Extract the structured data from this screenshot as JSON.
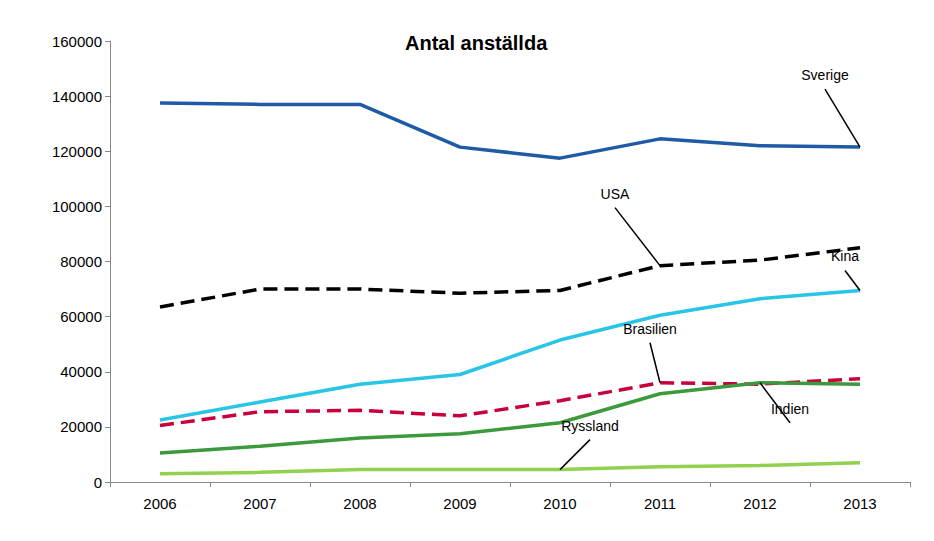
{
  "chart_data": {
    "type": "line",
    "title": "Antal anställda",
    "categories": [
      "2006",
      "2007",
      "2008",
      "2009",
      "2010",
      "2011",
      "2012",
      "2013"
    ],
    "series": [
      {
        "name": "Sverige",
        "color": "#1f5aa6",
        "line_style": "solid",
        "values": [
          137500,
          137000,
          137000,
          121500,
          117500,
          124500,
          122000,
          121500
        ]
      },
      {
        "name": "USA",
        "color": "#000000",
        "line_style": "dashed",
        "values": [
          63500,
          70000,
          70000,
          68500,
          69500,
          78500,
          80500,
          85000
        ]
      },
      {
        "name": "Kina",
        "color": "#29c5e6",
        "line_style": "solid",
        "values": [
          22500,
          29000,
          35500,
          39000,
          51500,
          60500,
          66500,
          69500
        ]
      },
      {
        "name": "Brasilien",
        "color": "#c8003c",
        "line_style": "dashed",
        "values": [
          20500,
          25500,
          26000,
          24000,
          29500,
          36000,
          35500,
          37500
        ]
      },
      {
        "name": "Indien",
        "color": "#3c9a3c",
        "line_style": "solid",
        "values": [
          10500,
          13000,
          16000,
          17500,
          21500,
          32000,
          36000,
          35500
        ]
      },
      {
        "name": "Ryssland",
        "color": "#92d050",
        "line_style": "solid",
        "values": [
          3000,
          3500,
          4500,
          4500,
          4500,
          5500,
          6000,
          7000
        ]
      }
    ],
    "ylim": [
      0,
      160000
    ],
    "yticks": [
      0,
      20000,
      40000,
      60000,
      80000,
      100000,
      120000,
      140000,
      160000
    ],
    "grid": false
  }
}
